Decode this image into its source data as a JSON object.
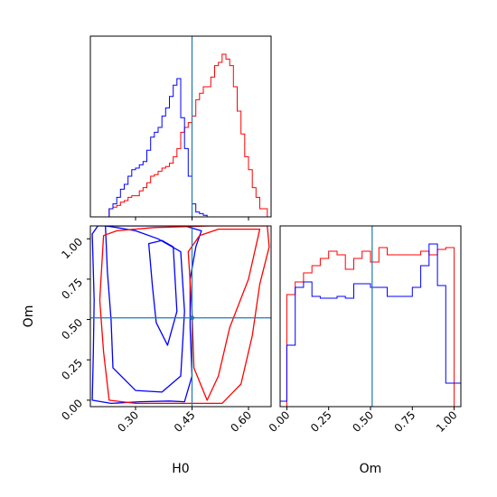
{
  "colors": {
    "series_a": "#ff0000",
    "series_b": "#0000ff",
    "truth": "#1f77b4",
    "frame": "#000000"
  },
  "chart_data": [
    {
      "panel": "top-left marginal",
      "type": "histogram",
      "parameter": "H0",
      "xlim": [
        0.18,
        0.66
      ],
      "truth": 0.45,
      "bins": [
        0.18,
        0.19,
        0.2,
        0.21,
        0.22,
        0.23,
        0.24,
        0.25,
        0.26,
        0.27,
        0.28,
        0.29,
        0.3,
        0.31,
        0.32,
        0.33,
        0.34,
        0.35,
        0.36,
        0.37,
        0.38,
        0.39,
        0.4,
        0.41,
        0.42,
        0.43,
        0.44,
        0.45,
        0.46,
        0.47,
        0.48,
        0.49,
        0.5,
        0.51,
        0.52,
        0.53,
        0.54,
        0.55,
        0.56,
        0.57,
        0.58,
        0.59,
        0.6,
        0.61,
        0.62,
        0.63,
        0.64,
        0.65,
        0.66
      ],
      "series": [
        {
          "color": "red",
          "counts": [
            0,
            0,
            0,
            0,
            0,
            0.05,
            0.06,
            0.07,
            0.09,
            0.1,
            0.12,
            0.13,
            0.13,
            0.16,
            0.18,
            0.21,
            0.25,
            0.26,
            0.28,
            0.3,
            0.31,
            0.33,
            0.37,
            0.42,
            0.52,
            0.55,
            0.58,
            0.62,
            0.72,
            0.76,
            0.8,
            0.8,
            0.86,
            0.93,
            0.95,
            1.0,
            0.97,
            0.93,
            0.8,
            0.65,
            0.51,
            0.37,
            0.29,
            0.18,
            0.12,
            0.05,
            0.05,
            0.0
          ]
        },
        {
          "color": "blue",
          "counts": [
            0,
            0,
            0,
            0,
            0,
            0.05,
            0.08,
            0.12,
            0.17,
            0.2,
            0.25,
            0.29,
            0.3,
            0.32,
            0.34,
            0.41,
            0.49,
            0.52,
            0.55,
            0.62,
            0.67,
            0.74,
            0.81,
            0.85,
            0.61,
            0.42,
            0.25,
            0.08,
            0.03,
            0.02,
            0.01,
            0,
            0,
            0,
            0,
            0,
            0,
            0,
            0,
            0,
            0,
            0,
            0,
            0,
            0,
            0,
            0,
            0
          ]
        }
      ],
      "xticks": [
        0.3,
        0.45,
        0.6
      ]
    },
    {
      "panel": "bottom-right marginal",
      "type": "histogram",
      "parameter": "Om",
      "xlim": [
        -0.04,
        1.04
      ],
      "truth": 0.51,
      "bins": [
        -0.04,
        0.0,
        0.05,
        0.1,
        0.15,
        0.2,
        0.25,
        0.3,
        0.35,
        0.4,
        0.45,
        0.5,
        0.55,
        0.6,
        0.65,
        0.7,
        0.75,
        0.8,
        0.85,
        0.9,
        0.95,
        1.0,
        1.04
      ],
      "series": [
        {
          "color": "red",
          "counts": [
            0,
            0.62,
            0.69,
            0.74,
            0.78,
            0.82,
            0.86,
            0.84,
            0.76,
            0.82,
            0.86,
            0.8,
            0.88,
            0.84,
            0.84,
            0.84,
            0.84,
            0.86,
            0.84,
            0.87,
            0.88,
            0
          ]
        },
        {
          "color": "blue",
          "counts": [
            0.03,
            0.34,
            0.66,
            0.69,
            0.61,
            0.6,
            0.6,
            0.61,
            0.6,
            0.68,
            0.68,
            0.66,
            0.66,
            0.61,
            0.61,
            0.61,
            0.66,
            0.78,
            0.9,
            0.67,
            0.13,
            0.13
          ]
        }
      ],
      "xticks": [
        0.0,
        0.25,
        0.5,
        0.75,
        1.0
      ],
      "xlabel": "Om"
    },
    {
      "panel": "bottom-left joint",
      "type": "contour",
      "x_parameter": "H0",
      "y_parameter": "Om",
      "xlim": [
        0.18,
        0.66
      ],
      "ylim": [
        -0.04,
        1.08
      ],
      "truth": {
        "x": 0.45,
        "y": 0.51
      },
      "xticks": [
        0.3,
        0.45,
        0.6
      ],
      "yticks": [
        0.0,
        0.25,
        0.5,
        0.75,
        1.0
      ],
      "xlabel": "H0",
      "ylabel": "Om",
      "contours": [
        {
          "color": "blue",
          "level": "outer",
          "points": [
            [
              0.185,
              1.03
            ],
            [
              0.19,
              0.62
            ],
            [
              0.188,
              0.3
            ],
            [
              0.185,
              0.0
            ],
            [
              0.235,
              -0.02
            ],
            [
              0.31,
              -0.01
            ],
            [
              0.39,
              -0.005
            ],
            [
              0.43,
              -0.01
            ],
            [
              0.45,
              0.15
            ],
            [
              0.445,
              0.45
            ],
            [
              0.445,
              0.75
            ],
            [
              0.46,
              0.95
            ],
            [
              0.475,
              1.05
            ],
            [
              0.43,
              1.08
            ],
            [
              0.3,
              1.08
            ],
            [
              0.2,
              1.08
            ]
          ]
        },
        {
          "color": "blue",
          "level": "inner",
          "points": [
            [
              0.22,
              1.08
            ],
            [
              0.225,
              0.8
            ],
            [
              0.235,
              0.5
            ],
            [
              0.24,
              0.2
            ],
            [
              0.3,
              0.06
            ],
            [
              0.37,
              0.05
            ],
            [
              0.42,
              0.15
            ],
            [
              0.43,
              0.55
            ],
            [
              0.42,
              0.92
            ],
            [
              0.36,
              1.0
            ],
            [
              0.3,
              1.05
            ],
            [
              0.25,
              1.07
            ]
          ]
        },
        {
          "color": "blue",
          "level": "island",
          "points": [
            [
              0.335,
              0.97
            ],
            [
              0.345,
              0.7
            ],
            [
              0.355,
              0.48
            ],
            [
              0.385,
              0.34
            ],
            [
              0.41,
              0.55
            ],
            [
              0.4,
              0.95
            ],
            [
              0.37,
              0.99
            ]
          ]
        },
        {
          "color": "red",
          "level": "outer",
          "points": [
            [
              0.215,
              1.02
            ],
            [
              0.205,
              0.62
            ],
            [
              0.215,
              0.3
            ],
            [
              0.23,
              0.0
            ],
            [
              0.3,
              -0.02
            ],
            [
              0.42,
              -0.02
            ],
            [
              0.53,
              -0.02
            ],
            [
              0.58,
              0.1
            ],
            [
              0.61,
              0.4
            ],
            [
              0.63,
              0.72
            ],
            [
              0.655,
              0.95
            ],
            [
              0.65,
              1.08
            ],
            [
              0.5,
              1.08
            ],
            [
              0.35,
              1.07
            ],
            [
              0.25,
              1.05
            ]
          ]
        },
        {
          "color": "red",
          "level": "inner",
          "points": [
            [
              0.44,
              0.92
            ],
            [
              0.45,
              0.55
            ],
            [
              0.455,
              0.2
            ],
            [
              0.49,
              0.0
            ],
            [
              0.52,
              0.15
            ],
            [
              0.55,
              0.45
            ],
            [
              0.6,
              0.75
            ],
            [
              0.63,
              1.06
            ],
            [
              0.52,
              1.06
            ],
            [
              0.47,
              1.02
            ]
          ]
        }
      ]
    }
  ]
}
